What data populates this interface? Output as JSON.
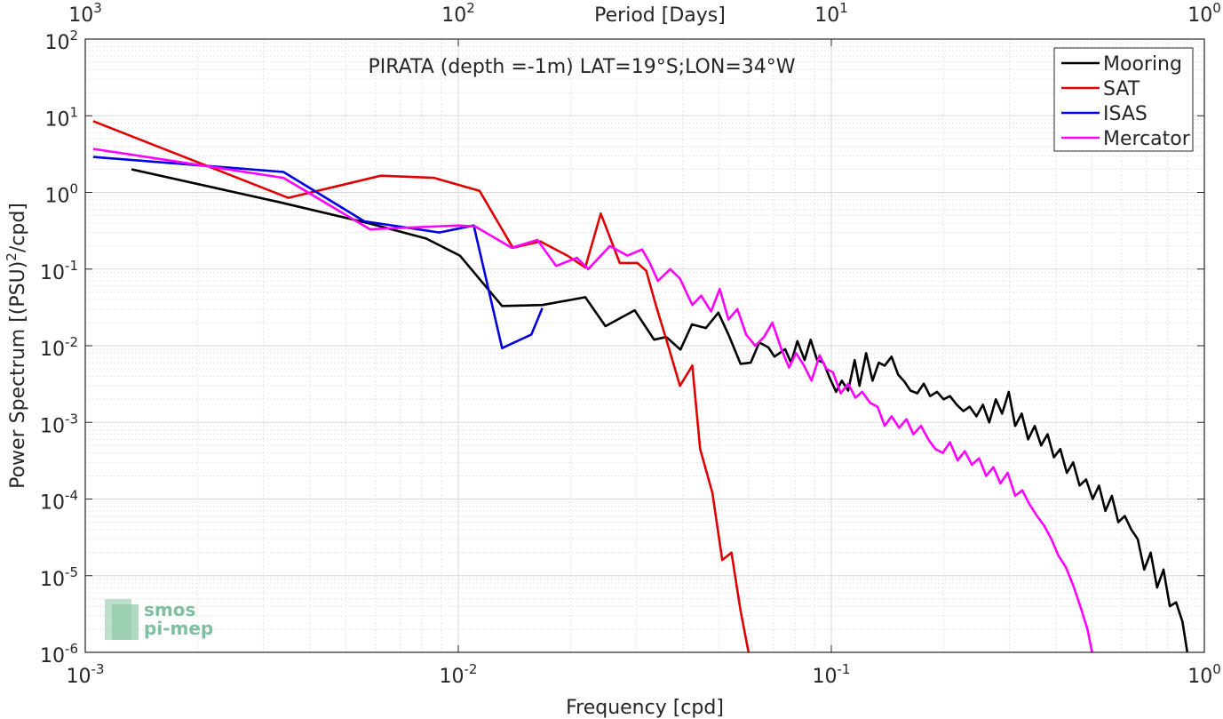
{
  "chart_data": {
    "type": "line",
    "title": "PIRATA (depth =-1m) LAT=19°S;LON=34°W",
    "xlabel": "Frequency [cpd]",
    "ylabel": "Power Spectrum [(PSU)^2/cpd]",
    "top_xlabel": "Period [Days]",
    "xscale": "log",
    "yscale": "log",
    "xlim": [
      0.001,
      1
    ],
    "ylim": [
      1e-06,
      100
    ],
    "grid": true,
    "legend_position": "top-right",
    "x_ticks": [
      {
        "base": "10",
        "exp": "-3",
        "value": 0.001
      },
      {
        "base": "10",
        "exp": "-2",
        "value": 0.01
      },
      {
        "base": "10",
        "exp": "-1",
        "value": 0.1
      },
      {
        "base": "10",
        "exp": "0",
        "value": 1
      }
    ],
    "y_ticks": [
      {
        "base": "10",
        "exp": "-6",
        "value": 1e-06
      },
      {
        "base": "10",
        "exp": "-5",
        "value": 1e-05
      },
      {
        "base": "10",
        "exp": "-4",
        "value": 0.0001
      },
      {
        "base": "10",
        "exp": "-3",
        "value": 0.001
      },
      {
        "base": "10",
        "exp": "-2",
        "value": 0.01
      },
      {
        "base": "10",
        "exp": "-1",
        "value": 0.1
      },
      {
        "base": "10",
        "exp": "0",
        "value": 1
      },
      {
        "base": "10",
        "exp": "1",
        "value": 10
      },
      {
        "base": "10",
        "exp": "2",
        "value": 100
      }
    ],
    "top_ticks": [
      {
        "base": "10",
        "exp": "3",
        "value": 0.001
      },
      {
        "base": "10",
        "exp": "2",
        "value": 0.01
      },
      {
        "base": "10",
        "exp": "1",
        "value": 0.1
      },
      {
        "base": "10",
        "exp": "0",
        "value": 1
      }
    ],
    "series": [
      {
        "name": "Mooring",
        "color": "#000000",
        "points": [
          [
            0.00133,
            2.0
          ],
          [
            0.0033,
            0.75
          ],
          [
            0.0057,
            0.4
          ],
          [
            0.0082,
            0.25
          ],
          [
            0.0101,
            0.15
          ],
          [
            0.0131,
            0.033
          ],
          [
            0.0168,
            0.034
          ],
          [
            0.0219,
            0.043
          ],
          [
            0.0248,
            0.018
          ],
          [
            0.0297,
            0.029
          ],
          [
            0.0335,
            0.012
          ],
          [
            0.0361,
            0.013
          ],
          [
            0.0394,
            0.0089
          ],
          [
            0.0423,
            0.019
          ],
          [
            0.0461,
            0.017
          ],
          [
            0.0498,
            0.027
          ],
          [
            0.053,
            0.014
          ],
          [
            0.0571,
            0.0058
          ],
          [
            0.0608,
            0.006
          ],
          [
            0.0641,
            0.011
          ],
          [
            0.0678,
            0.0095
          ],
          [
            0.0704,
            0.0072
          ],
          [
            0.0752,
            0.009
          ],
          [
            0.078,
            0.006
          ],
          [
            0.0811,
            0.0115
          ],
          [
            0.0848,
            0.0065
          ],
          [
            0.088,
            0.012
          ],
          [
            0.0916,
            0.0065
          ],
          [
            0.0953,
            0.006
          ],
          [
            0.099,
            0.0038
          ],
          [
            0.103,
            0.0025
          ],
          [
            0.1067,
            0.0035
          ],
          [
            0.111,
            0.0026
          ],
          [
            0.1155,
            0.0065
          ],
          [
            0.119,
            0.003
          ],
          [
            0.124,
            0.008
          ],
          [
            0.129,
            0.0035
          ],
          [
            0.134,
            0.006
          ],
          [
            0.139,
            0.0055
          ],
          [
            0.145,
            0.0072
          ],
          [
            0.151,
            0.0042
          ],
          [
            0.157,
            0.0034
          ],
          [
            0.163,
            0.0026
          ],
          [
            0.17,
            0.0024
          ],
          [
            0.177,
            0.0032
          ],
          [
            0.184,
            0.0022
          ],
          [
            0.192,
            0.0025
          ],
          [
            0.2,
            0.002
          ],
          [
            0.208,
            0.0022
          ],
          [
            0.217,
            0.0017
          ],
          [
            0.226,
            0.0014
          ],
          [
            0.235,
            0.0016
          ],
          [
            0.245,
            0.0012
          ],
          [
            0.255,
            0.0017
          ],
          [
            0.265,
            0.001
          ],
          [
            0.276,
            0.002
          ],
          [
            0.287,
            0.0013
          ],
          [
            0.299,
            0.0025
          ],
          [
            0.311,
            0.0009
          ],
          [
            0.324,
            0.0013
          ],
          [
            0.337,
            0.0006
          ],
          [
            0.351,
            0.0009
          ],
          [
            0.365,
            0.0005
          ],
          [
            0.38,
            0.0007
          ],
          [
            0.395,
            0.00035
          ],
          [
            0.411,
            0.00045
          ],
          [
            0.428,
            0.00022
          ],
          [
            0.445,
            0.0003
          ],
          [
            0.463,
            0.00015
          ],
          [
            0.482,
            0.00018
          ],
          [
            0.502,
            0.0001
          ],
          [
            0.522,
            0.00015
          ],
          [
            0.543,
            7e-05
          ],
          [
            0.565,
            0.00011
          ],
          [
            0.588,
            5e-05
          ],
          [
            0.612,
            6e-05
          ],
          [
            0.637,
            4e-05
          ],
          [
            0.663,
            3e-05
          ],
          [
            0.69,
            1.2e-05
          ],
          [
            0.718,
            2e-05
          ],
          [
            0.747,
            7e-06
          ],
          [
            0.777,
            1.2e-05
          ],
          [
            0.808,
            4e-06
          ],
          [
            0.84,
            4.5e-06
          ],
          [
            0.874,
            2.5e-06
          ],
          [
            0.9,
            1e-06
          ]
        ]
      },
      {
        "name": "SAT",
        "color": "#e00000",
        "points": [
          [
            0.00105,
            8.5
          ],
          [
            0.0035,
            0.85
          ],
          [
            0.0062,
            1.65
          ],
          [
            0.0086,
            1.55
          ],
          [
            0.0114,
            1.05
          ],
          [
            0.014,
            0.19
          ],
          [
            0.0166,
            0.23
          ],
          [
            0.0196,
            0.15
          ],
          [
            0.0219,
            0.105
          ],
          [
            0.0241,
            0.53
          ],
          [
            0.0271,
            0.12
          ],
          [
            0.0302,
            0.12
          ],
          [
            0.0319,
            0.095
          ],
          [
            0.0338,
            0.035
          ],
          [
            0.0363,
            0.011
          ],
          [
            0.0393,
            0.003
          ],
          [
            0.0424,
            0.0055
          ],
          [
            0.0445,
            0.00045
          ],
          [
            0.048,
            0.00012
          ],
          [
            0.051,
            1.6e-05
          ],
          [
            0.054,
            2e-05
          ],
          [
            0.0571,
            3.5e-06
          ],
          [
            0.06,
            1e-06
          ]
        ]
      },
      {
        "name": "ISAS",
        "color": "#0000e0",
        "points": [
          [
            0.00105,
            2.9
          ],
          [
            0.0034,
            1.85
          ],
          [
            0.0056,
            0.42
          ],
          [
            0.0089,
            0.3
          ],
          [
            0.011,
            0.37
          ],
          [
            0.0131,
            0.0093
          ],
          [
            0.0157,
            0.014
          ],
          [
            0.0168,
            0.031
          ]
        ]
      },
      {
        "name": "Mercator",
        "color": "#ff00ff",
        "points": [
          [
            0.00105,
            3.7
          ],
          [
            0.0034,
            1.55
          ],
          [
            0.0058,
            0.33
          ],
          [
            0.01,
            0.37
          ],
          [
            0.0111,
            0.36
          ],
          [
            0.0139,
            0.19
          ],
          [
            0.0163,
            0.24
          ],
          [
            0.0183,
            0.11
          ],
          [
            0.0208,
            0.14
          ],
          [
            0.0223,
            0.1
          ],
          [
            0.0255,
            0.2
          ],
          [
            0.0284,
            0.15
          ],
          [
            0.0311,
            0.18
          ],
          [
            0.0326,
            0.12
          ],
          [
            0.0343,
            0.07
          ],
          [
            0.037,
            0.1
          ],
          [
            0.0393,
            0.075
          ],
          [
            0.0424,
            0.034
          ],
          [
            0.0448,
            0.045
          ],
          [
            0.0476,
            0.028
          ],
          [
            0.0502,
            0.055
          ],
          [
            0.053,
            0.022
          ],
          [
            0.056,
            0.03
          ],
          [
            0.0591,
            0.014
          ],
          [
            0.0625,
            0.01
          ],
          [
            0.066,
            0.013
          ],
          [
            0.0695,
            0.02
          ],
          [
            0.0735,
            0.009
          ],
          [
            0.077,
            0.0052
          ],
          [
            0.0805,
            0.008
          ],
          [
            0.0845,
            0.0055
          ],
          [
            0.0885,
            0.0035
          ],
          [
            0.093,
            0.0075
          ],
          [
            0.097,
            0.005
          ],
          [
            0.101,
            0.0045
          ],
          [
            0.106,
            0.0024
          ],
          [
            0.111,
            0.0032
          ],
          [
            0.116,
            0.0021
          ],
          [
            0.121,
            0.0025
          ],
          [
            0.127,
            0.0018
          ],
          [
            0.133,
            0.0016
          ],
          [
            0.139,
            0.0009
          ],
          [
            0.145,
            0.0012
          ],
          [
            0.152,
            0.00085
          ],
          [
            0.159,
            0.0011
          ],
          [
            0.166,
            0.0007
          ],
          [
            0.174,
            0.0009
          ],
          [
            0.182,
            0.0006
          ],
          [
            0.19,
            0.00045
          ],
          [
            0.199,
            0.0004
          ],
          [
            0.208,
            0.00055
          ],
          [
            0.218,
            0.00032
          ],
          [
            0.228,
            0.00042
          ],
          [
            0.238,
            0.00028
          ],
          [
            0.249,
            0.00034
          ],
          [
            0.26,
            0.0002
          ],
          [
            0.272,
            0.00026
          ],
          [
            0.284,
            0.00016
          ],
          [
            0.297,
            0.00022
          ],
          [
            0.311,
            0.00011
          ],
          [
            0.325,
            0.00013
          ],
          [
            0.34,
            8.5e-05
          ],
          [
            0.356,
            6e-05
          ],
          [
            0.372,
            4.5e-05
          ],
          [
            0.389,
            3e-05
          ],
          [
            0.407,
            1.8e-05
          ],
          [
            0.425,
            1.3e-05
          ],
          [
            0.445,
            7.5e-06
          ],
          [
            0.465,
            4e-06
          ],
          [
            0.486,
            2e-06
          ],
          [
            0.5,
            1e-06
          ]
        ]
      }
    ]
  },
  "logo": {
    "line1": "smos",
    "line2": "pi-mep"
  }
}
